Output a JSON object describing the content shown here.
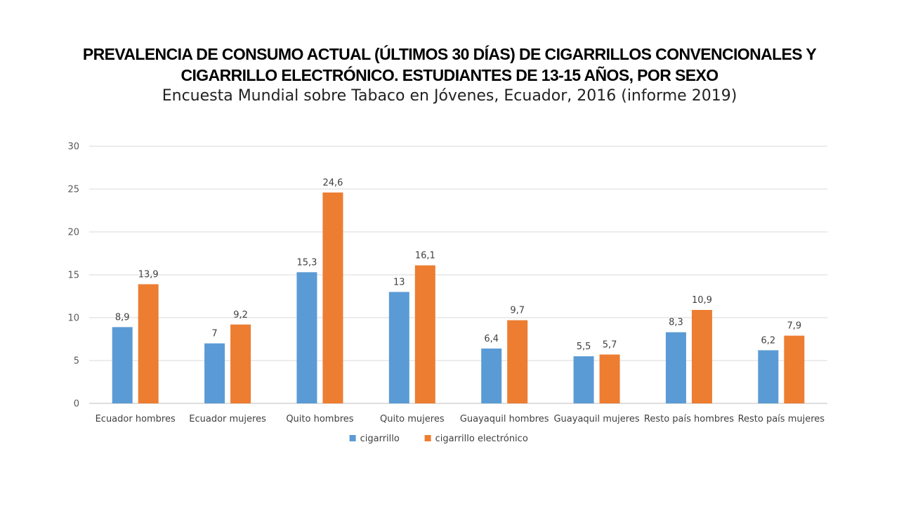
{
  "chart_data": {
    "type": "bar",
    "title_lines": [
      "PREVALENCIA DE CONSUMO ACTUAL (ÚLTIMOS 30 DÍAS) DE CIGARRILLOS CONVENCIONALES Y",
      "CIGARRILLO ELECTRÓNICO. ESTUDIANTES DE 13-15 AÑOS, POR SEXO"
    ],
    "subtitle": "Encuesta Mundial sobre Tabaco en Jóvenes, Ecuador, 2016 (informe 2019)",
    "categories": [
      "Ecuador hombres",
      "Ecuador mujeres",
      "Quito hombres",
      "Quito mujeres",
      "Guayaquil hombres",
      "Guayaquil mujeres",
      "Resto país hombres",
      "Resto país mujeres"
    ],
    "series": [
      {
        "name": "cigarrillo",
        "color": "#5B9BD5",
        "values": [
          8.9,
          7,
          15.3,
          13,
          6.4,
          5.5,
          8.3,
          6.2
        ],
        "labels": [
          "8,9",
          "7",
          "15,3",
          "13",
          "6,4",
          "5,5",
          "8,3",
          "6,2"
        ]
      },
      {
        "name": "cigarrillo electrónico",
        "color": "#ED7D31",
        "values": [
          13.9,
          9.2,
          24.6,
          16.1,
          9.7,
          5.7,
          10.9,
          7.9
        ],
        "labels": [
          "13,9",
          "9,2",
          "24,6",
          "16,1",
          "9,7",
          "5,7",
          "10,9",
          "7,9"
        ]
      }
    ],
    "y_ticks": [
      "0",
      "5",
      "10",
      "15",
      "20",
      "25",
      "30"
    ],
    "ylim": [
      0,
      30
    ],
    "grid": true,
    "legend_position": "bottom"
  }
}
